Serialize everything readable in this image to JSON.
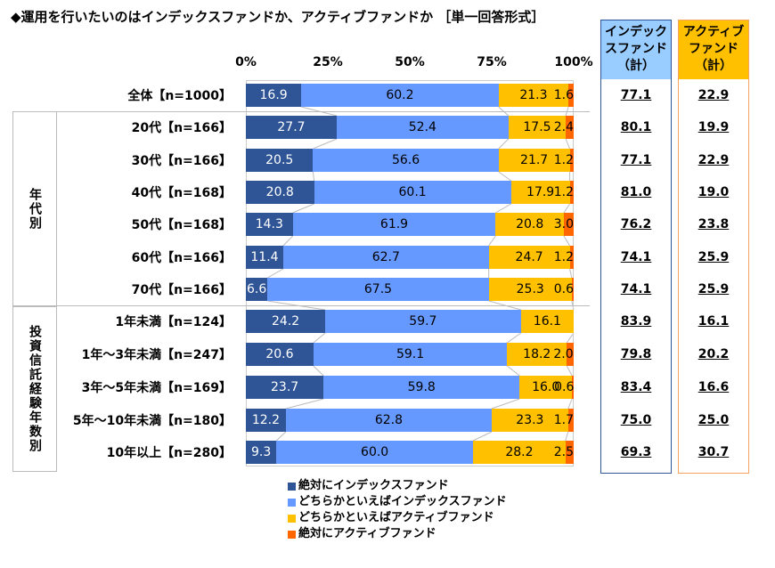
{
  "chart_data": {
    "type": "bar",
    "orientation": "horizontal",
    "stacked": true,
    "title": "◆運用を行いたいのはインデックスファンドか、アクティブファンドか ［単一回答形式］",
    "xlim": [
      0,
      100
    ],
    "ticks": [
      "0%",
      "25%",
      "50%",
      "75%",
      "100%"
    ],
    "categories": [
      "全体【n=1000】",
      "20代【n=166】",
      "30代【n=166】",
      "40代【n=168】",
      "50代【n=168】",
      "60代【n=166】",
      "70代【n=166】",
      "1年未満【n=124】",
      "1年～3年未満【n=247】",
      "3年～5年未満【n=169】",
      "5年～10年未満【n=180】",
      "10年以上【n=280】"
    ],
    "groups": [
      {
        "label": "年代別",
        "from": 1,
        "to": 6
      },
      {
        "label": "投資信託経験年数別",
        "from": 7,
        "to": 11
      }
    ],
    "series": [
      {
        "name": "絶対にインデックスファンド",
        "color": "#2F5597",
        "values": [
          16.9,
          27.7,
          20.5,
          20.8,
          14.3,
          11.4,
          6.6,
          24.2,
          20.6,
          23.7,
          12.2,
          9.3
        ]
      },
      {
        "name": "どちらかといえばインデックスファンド",
        "color": "#6699FF",
        "values": [
          60.2,
          52.4,
          56.6,
          60.1,
          61.9,
          62.7,
          67.5,
          59.7,
          59.1,
          59.8,
          62.8,
          60.0
        ]
      },
      {
        "name": "どちらかといえばアクティブファンド",
        "color": "#FFC000",
        "values": [
          21.3,
          17.5,
          21.7,
          17.9,
          20.8,
          24.7,
          25.3,
          16.1,
          18.2,
          16.0,
          23.3,
          28.2
        ]
      },
      {
        "name": "絶対にアクティブファンド",
        "color": "#FF6600",
        "values": [
          1.6,
          2.4,
          1.2,
          1.2,
          3.0,
          1.2,
          0.6,
          0.0,
          2.0,
          0.6,
          1.7,
          2.5
        ]
      }
    ],
    "summary_columns": [
      {
        "header": "インデック\nスファンド\n（計）",
        "color": "#99CCFF",
        "border": "#2F5597",
        "values": [
          "77.1",
          "80.1",
          "77.1",
          "81.0",
          "76.2",
          "74.1",
          "74.1",
          "83.9",
          "79.8",
          "83.4",
          "75.0",
          "69.3"
        ]
      },
      {
        "header": "アクティブ\nファンド\n（計）",
        "color": "#FFC000",
        "border": "#F4A460",
        "values": [
          "22.9",
          "19.9",
          "22.9",
          "19.0",
          "23.8",
          "25.9",
          "25.9",
          "16.1",
          "20.2",
          "16.6",
          "25.0",
          "30.7"
        ]
      }
    ],
    "legend_position": "bottom"
  }
}
